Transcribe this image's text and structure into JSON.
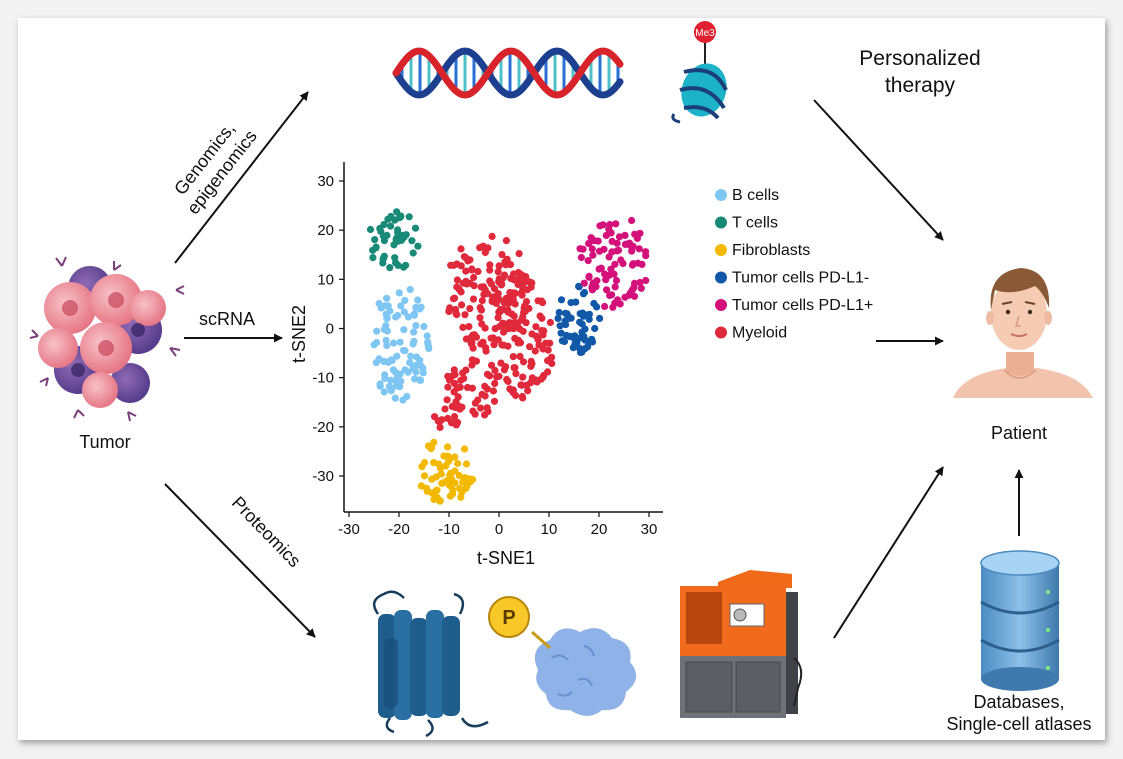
{
  "labels": {
    "tumor": "Tumor",
    "scrna": "scRNA",
    "genomics_line1": "Genomics,",
    "genomics_line2": "epigenomics",
    "proteomics": "Proteomics",
    "therapy_line1": "Personalized",
    "therapy_line2": "therapy",
    "patient": "Patient",
    "databases_line1": "Databases,",
    "databases_line2": "Single-cell atlases",
    "methyl_tag": "Me3",
    "phospho_tag": "P"
  },
  "icons": [
    "tumor-cells-icon",
    "dna-helix-icon",
    "nucleosome-icon",
    "receptor-protein-icon",
    "phospho-protein-icon",
    "mass-spectrometer-icon",
    "patient-icon",
    "database-icon"
  ],
  "colors": {
    "b_cells": "#7fc7f2",
    "t_cells": "#1a8a78",
    "fibroblasts": "#f2b900",
    "pdl1_neg": "#1258a8",
    "pdl1_pos": "#d4117a",
    "myeloid": "#e0293b"
  },
  "chart_data": {
    "type": "scatter",
    "xlabel": "t-SNE1",
    "ylabel": "t-SNE2",
    "xlim": [
      -30,
      30
    ],
    "ylim": [
      -35,
      33
    ],
    "xticks": [
      "-30",
      "-20",
      "-10",
      "0",
      "10",
      "20",
      "30"
    ],
    "yticks": [
      "30",
      "20",
      "10",
      "0",
      "-10",
      "-20",
      "-30"
    ],
    "grid": false,
    "legend_position": "right",
    "series": [
      {
        "name": "B cells",
        "color": "#7fc7f2",
        "clusters": [
          {
            "cx": -20,
            "cy": -3,
            "rx": 6,
            "ry": 12,
            "n": 90
          }
        ]
      },
      {
        "name": "T cells",
        "color": "#1a8a78",
        "clusters": [
          {
            "cx": -21,
            "cy": 18,
            "rx": 5.5,
            "ry": 6,
            "n": 45
          }
        ]
      },
      {
        "name": "Fibroblasts",
        "color": "#f2b900",
        "clusters": [
          {
            "cx": -11,
            "cy": -29,
            "rx": 6,
            "ry": 6.5,
            "n": 60
          }
        ]
      },
      {
        "name": "Tumor cells PD-L1-",
        "color": "#1258a8",
        "clusters": [
          {
            "cx": 16,
            "cy": 2,
            "rx": 4.5,
            "ry": 7,
            "n": 55
          }
        ]
      },
      {
        "name": "Tumor cells PD-L1+",
        "color": "#d4117a",
        "clusters": [
          {
            "cx": 23,
            "cy": 14,
            "rx": 7,
            "ry": 10,
            "n": 85
          }
        ]
      },
      {
        "name": "Myeloid",
        "color": "#e0293b",
        "clusters": [
          {
            "cx": -2,
            "cy": 7,
            "rx": 9,
            "ry": 12,
            "n": 150
          },
          {
            "cx": 5,
            "cy": -3,
            "rx": 6,
            "ry": 12,
            "n": 80
          },
          {
            "cx": -5,
            "cy": -12,
            "rx": 6,
            "ry": 6,
            "n": 45
          },
          {
            "cx": -10,
            "cy": -18,
            "rx": 3,
            "ry": 3,
            "n": 14
          }
        ]
      }
    ]
  }
}
